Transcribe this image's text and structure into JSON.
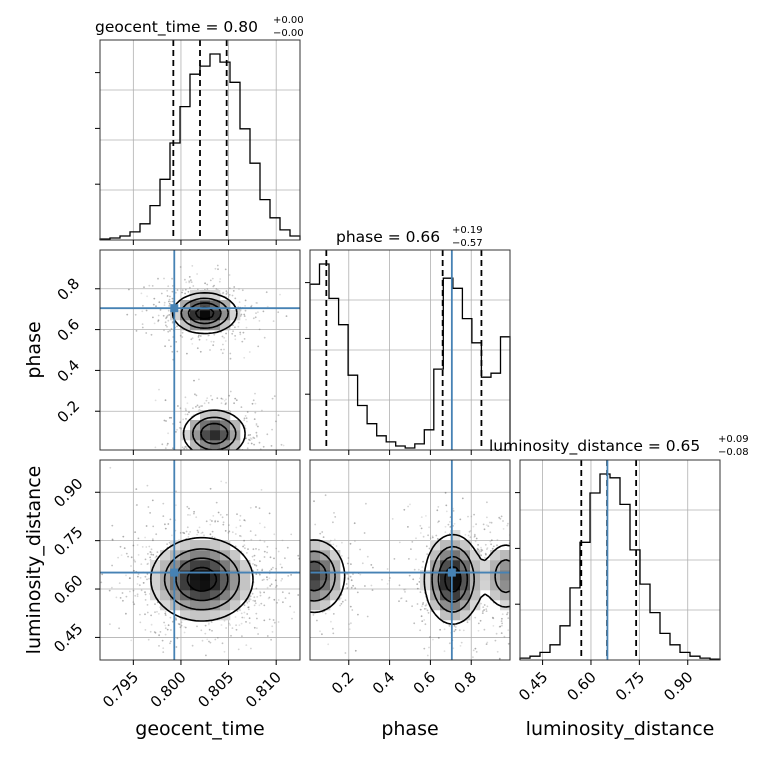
{
  "chart_data": {
    "type": "corner",
    "parameters": [
      "geocent_time",
      "phase",
      "luminosity_distance"
    ],
    "truths": {
      "geocent_time": 0.7993,
      "phase": 0.705,
      "luminosity_distance": 0.651
    },
    "colors": {
      "hist": "#000000",
      "truth": "#4682b4",
      "grid": "#b0b0b0",
      "density_max": "#000000"
    },
    "titles": [
      {
        "param": "geocent_time",
        "text": "geocent_time = 0.80",
        "sup": "+0.00",
        "sub": "−0.00"
      },
      {
        "param": "phase",
        "text": "phase = 0.66",
        "sup": "+0.19",
        "sub": "−0.57"
      },
      {
        "param": "luminosity_distance",
        "text": "luminosity_distance = 0.65",
        "sup": "+0.09",
        "sub": "−0.08"
      }
    ],
    "axis_labels": {
      "x": [
        "geocent_time",
        "phase",
        "luminosity_distance"
      ],
      "y": [
        "phase",
        "luminosity_distance"
      ]
    },
    "ranges": {
      "geocent_time": [
        0.7915,
        0.8125
      ],
      "phase": [
        0.01,
        0.99
      ],
      "luminosity_distance": [
        0.38,
        1.0
      ]
    },
    "ticks": {
      "geocent_time": [
        0.795,
        0.8,
        0.805,
        0.81
      ],
      "phase": [
        0.2,
        0.4,
        0.6,
        0.8
      ],
      "luminosity_distance": [
        0.45,
        0.6,
        0.75,
        0.9
      ]
    },
    "tick_labels": {
      "geocent_time": [
        "0.795",
        "0.800",
        "0.805",
        "0.810"
      ],
      "phase": [
        "0.2",
        "0.4",
        "0.6",
        "0.8"
      ],
      "luminosity_distance": [
        "0.45",
        "0.60",
        "0.75",
        "0.90"
      ]
    },
    "quantiles": {
      "geocent_time": [
        0.7992,
        0.802,
        0.8048
      ],
      "phase": [
        0.09,
        0.66,
        0.85
      ],
      "luminosity_distance": [
        0.57,
        0.65,
        0.74
      ]
    },
    "histograms": {
      "geocent_time": {
        "range": [
          0.7915,
          0.8125
        ],
        "counts": [
          0.005,
          0.01,
          0.02,
          0.04,
          0.08,
          0.17,
          0.3,
          0.48,
          0.66,
          0.82,
          0.86,
          0.92,
          0.88,
          0.78,
          0.55,
          0.38,
          0.2,
          0.11,
          0.05,
          0.02
        ]
      },
      "phase": {
        "range": [
          0.01,
          0.99
        ],
        "counts": [
          0.82,
          0.92,
          0.75,
          0.62,
          0.37,
          0.22,
          0.13,
          0.07,
          0.04,
          0.02,
          0.01,
          0.03,
          0.1,
          0.4,
          0.85,
          0.8,
          0.65,
          0.53,
          0.36,
          0.38,
          0.56
        ]
      },
      "luminosity_distance": {
        "range": [
          0.38,
          1.0
        ],
        "counts": [
          0.01,
          0.02,
          0.04,
          0.08,
          0.18,
          0.38,
          0.62,
          0.88,
          0.98,
          0.96,
          0.82,
          0.58,
          0.4,
          0.25,
          0.14,
          0.08,
          0.04,
          0.02,
          0.01,
          0.005
        ]
      }
    },
    "pairs": [
      {
        "x": "geocent_time",
        "y": "phase",
        "density_modes": [
          {
            "mx": 0.8025,
            "my": 0.68,
            "sx": 0.0017,
            "sy": 0.05,
            "w": 1.0
          },
          {
            "mx": 0.8035,
            "my": 0.09,
            "sx": 0.0017,
            "sy": 0.06,
            "w": 0.85
          }
        ]
      },
      {
        "x": "geocent_time",
        "y": "luminosity_distance",
        "density_modes": [
          {
            "mx": 0.8022,
            "my": 0.63,
            "sx": 0.0027,
            "sy": 0.065,
            "w": 1.0
          }
        ]
      },
      {
        "x": "phase",
        "y": "luminosity_distance",
        "density_modes": [
          {
            "mx": 0.03,
            "my": 0.64,
            "sx": 0.08,
            "sy": 0.06,
            "w": 0.8
          },
          {
            "mx": 0.71,
            "my": 0.63,
            "sx": 0.07,
            "sy": 0.07,
            "w": 1.0
          },
          {
            "mx": 0.97,
            "my": 0.64,
            "sx": 0.06,
            "sy": 0.06,
            "w": 0.5
          }
        ]
      }
    ]
  }
}
